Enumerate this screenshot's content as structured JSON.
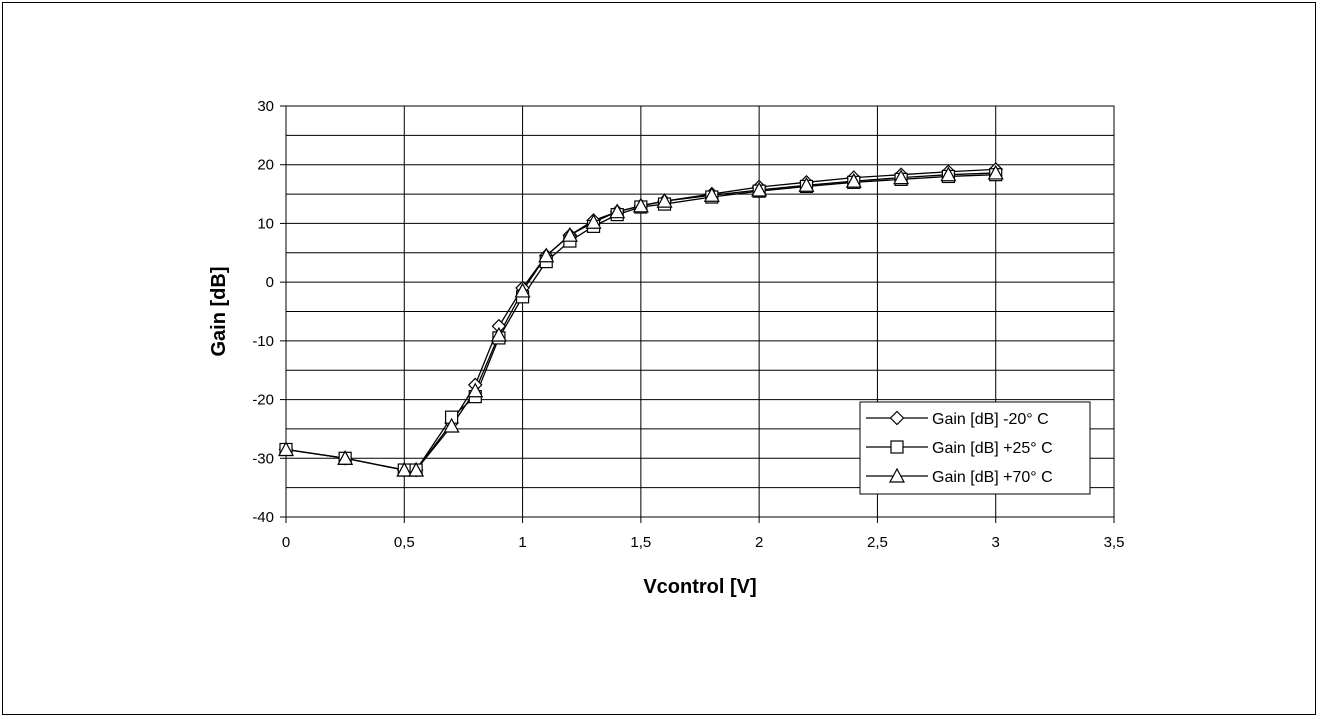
{
  "chart_data": {
    "type": "line",
    "xlabel": "Vcontrol [V]",
    "ylabel": "Gain [dB]",
    "xlim": [
      0,
      3.5
    ],
    "ylim": [
      -40,
      30
    ],
    "x_ticks": [
      0,
      0.5,
      1,
      1.5,
      2,
      2.5,
      3,
      3.5
    ],
    "x_tick_labels": [
      "0",
      "0,5",
      "1",
      "1,5",
      "2",
      "2,5",
      "3",
      "3,5"
    ],
    "y_ticks": [
      -40,
      -30,
      -20,
      -10,
      0,
      10,
      20,
      30
    ],
    "y_tick_labels": [
      "-40",
      "-30",
      "-20",
      "-10",
      "0",
      "10",
      "20",
      "30"
    ],
    "grid": "on (major + minor horizontal)",
    "legend_position": "bottom-right",
    "series": [
      {
        "name": "Gain [dB] -20° C",
        "marker": "diamond",
        "x": [
          0,
          0.25,
          0.5,
          0.55,
          0.7,
          0.8,
          0.9,
          1.0,
          1.1,
          1.2,
          1.3,
          1.4,
          1.5,
          1.6,
          1.8,
          2.0,
          2.2,
          2.4,
          2.6,
          2.8,
          3.0
        ],
        "y": [
          -28.5,
          -30,
          -32,
          -32,
          -24,
          -17.5,
          -7.5,
          -1,
          4.5,
          8,
          10.5,
          12,
          13,
          13.8,
          15,
          16.2,
          17,
          17.8,
          18.3,
          18.8,
          19.2
        ]
      },
      {
        "name": "Gain [dB] +25° C",
        "marker": "square",
        "x": [
          0,
          0.25,
          0.5,
          0.55,
          0.7,
          0.8,
          0.9,
          1.0,
          1.1,
          1.2,
          1.3,
          1.4,
          1.5,
          1.6,
          1.8,
          2.0,
          2.2,
          2.4,
          2.6,
          2.8,
          3.0
        ],
        "y": [
          -28.5,
          -30,
          -32,
          -32,
          -23,
          -19.5,
          -9.5,
          -2.5,
          3.5,
          7,
          9.5,
          11.5,
          12.8,
          13.3,
          14.5,
          15.5,
          16.3,
          17,
          17.5,
          18,
          18.3
        ]
      },
      {
        "name": "Gain [dB] +70° C",
        "marker": "triangle",
        "x": [
          0,
          0.25,
          0.5,
          0.55,
          0.7,
          0.8,
          0.9,
          1.0,
          1.1,
          1.2,
          1.3,
          1.4,
          1.5,
          1.6,
          1.8,
          2.0,
          2.2,
          2.4,
          2.6,
          2.8,
          3.0
        ],
        "y": [
          -28.5,
          -30,
          -32,
          -32,
          -24.5,
          -18.5,
          -9,
          -1.5,
          4.5,
          8,
          10.2,
          12,
          13,
          13.8,
          14.8,
          15.7,
          16.5,
          17.2,
          17.8,
          18.3,
          18.6
        ]
      }
    ]
  }
}
